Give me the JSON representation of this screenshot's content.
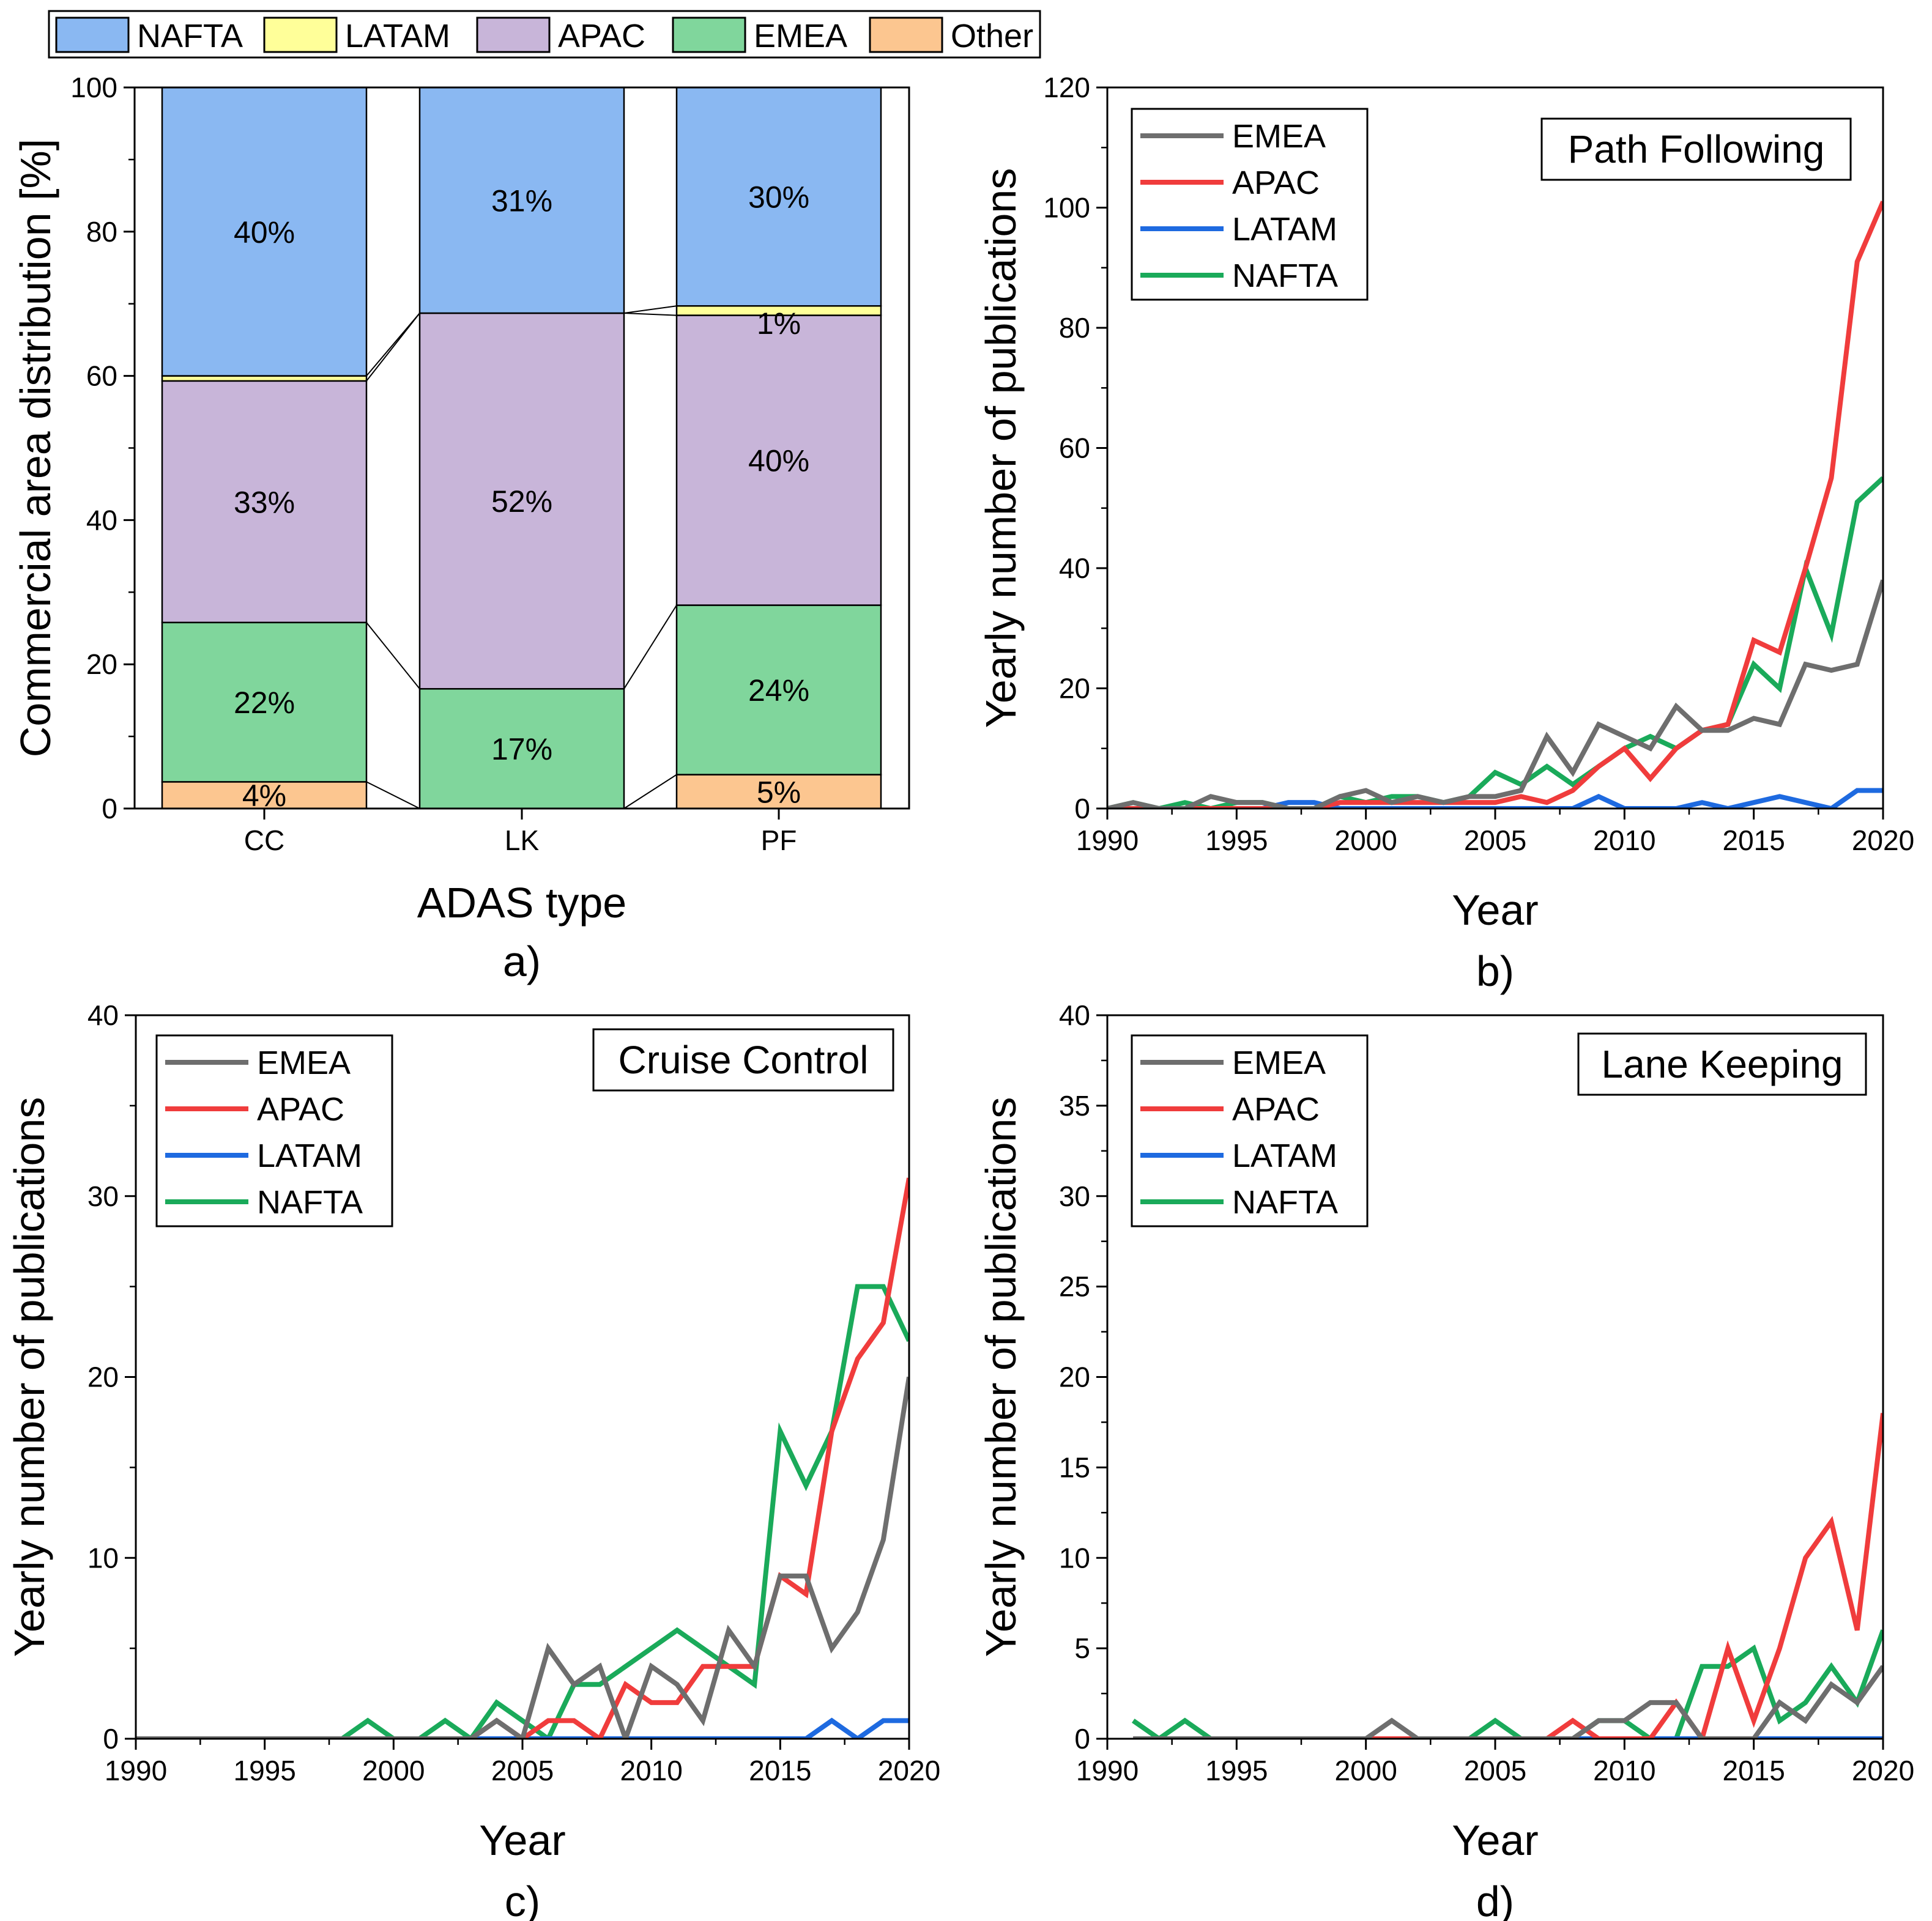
{
  "colors": {
    "NAFTA_fill": "#8ab8f2",
    "LATAM_fill": "#ffff99",
    "APAC_fill": "#c8b5d9",
    "EMEA_fill": "#80d69c",
    "Other_fill": "#fcc690",
    "EMEA_line": "#6e6e6e",
    "APAC_line": "#f03c3c",
    "LATAM_line": "#1e6ae0",
    "NAFTA_line": "#1aaa5a"
  },
  "top_legend": [
    "NAFTA",
    "LATAM",
    "APAC",
    "EMEA",
    "Other"
  ],
  "chart_data": [
    {
      "type": "bar",
      "stacked": true,
      "panel_label": "a)",
      "xlabel": "ADAS type",
      "ylabel": "Commercial area distribution [%]",
      "ylim": [
        0,
        100
      ],
      "yticks": [
        "0",
        "20",
        "40",
        "60",
        "80",
        "100"
      ],
      "categories": [
        "CC",
        "LK",
        "PF"
      ],
      "series": [
        {
          "name": "Other",
          "values": [
            3.7,
            0,
            4.7
          ],
          "labels": [
            "4%",
            "",
            "5%"
          ]
        },
        {
          "name": "EMEA",
          "values": [
            22.1,
            16.6,
            23.5
          ],
          "labels": [
            "22%",
            "17%",
            "24%"
          ]
        },
        {
          "name": "APAC",
          "values": [
            33.5,
            52.1,
            40.2
          ],
          "labels": [
            "33%",
            "52%",
            "40%"
          ]
        },
        {
          "name": "LATAM",
          "values": [
            0.7,
            0,
            1.3
          ],
          "labels": [
            "",
            "",
            "1%"
          ]
        },
        {
          "name": "NAFTA",
          "values": [
            40.0,
            31.3,
            30.3
          ],
          "labels": [
            "40%",
            "31%",
            "30%"
          ]
        }
      ]
    },
    {
      "type": "line",
      "panel_label": "b)",
      "title": "Path Following",
      "xlabel": "Year",
      "ylabel": "Yearly number of publications",
      "xlim": [
        1990,
        2020
      ],
      "ylim": [
        0,
        120
      ],
      "xticks": [
        "1990",
        "1995",
        "2000",
        "2005",
        "2010",
        "2015",
        "2020"
      ],
      "yticks": [
        "0",
        "20",
        "40",
        "60",
        "80",
        "100",
        "120"
      ],
      "x": [
        1990,
        1991,
        1992,
        1993,
        1994,
        1995,
        1996,
        1997,
        1998,
        1999,
        2000,
        2001,
        2002,
        2003,
        2004,
        2005,
        2006,
        2007,
        2008,
        2009,
        2010,
        2011,
        2012,
        2013,
        2014,
        2015,
        2016,
        2017,
        2018,
        2019,
        2020
      ],
      "series": [
        {
          "name": "EMEA",
          "values": [
            0,
            1,
            0,
            0,
            2,
            1,
            1,
            0,
            0,
            2,
            3,
            1,
            2,
            1,
            2,
            2,
            3,
            12,
            6,
            14,
            12,
            10,
            17,
            13,
            13,
            15,
            14,
            24,
            23,
            24,
            38
          ]
        },
        {
          "name": "APAC",
          "values": [
            0,
            0,
            0,
            0,
            0,
            0,
            0,
            0,
            0,
            1,
            1,
            1,
            1,
            1,
            1,
            1,
            2,
            1,
            3,
            7,
            10,
            5,
            10,
            13,
            14,
            28,
            26,
            40,
            55,
            91,
            101
          ]
        },
        {
          "name": "LATAM",
          "values": [
            0,
            0,
            0,
            0,
            0,
            0,
            0,
            1,
            1,
            0,
            0,
            0,
            0,
            0,
            0,
            0,
            0,
            0,
            0,
            2,
            0,
            0,
            0,
            1,
            0,
            1,
            2,
            1,
            0,
            3,
            3
          ]
        },
        {
          "name": "NAFTA",
          "values": [
            0,
            1,
            0,
            1,
            0,
            1,
            1,
            0,
            0,
            2,
            1,
            2,
            2,
            1,
            2,
            6,
            4,
            7,
            4,
            7,
            10,
            12,
            10,
            13,
            14,
            24,
            20,
            40,
            29,
            51,
            55
          ]
        }
      ]
    },
    {
      "type": "line",
      "panel_label": "c)",
      "title": "Cruise Control",
      "xlabel": "Year",
      "ylabel": "Yearly number of publications",
      "xlim": [
        1990,
        2020
      ],
      "ylim": [
        0,
        40
      ],
      "xticks": [
        "1990",
        "1995",
        "2000",
        "2005",
        "2010",
        "2015",
        "2020"
      ],
      "yticks": [
        "0",
        "10",
        "20",
        "30",
        "40"
      ],
      "x": [
        1990,
        1991,
        1992,
        1993,
        1994,
        1995,
        1996,
        1997,
        1998,
        1999,
        2000,
        2001,
        2002,
        2003,
        2004,
        2005,
        2006,
        2007,
        2008,
        2009,
        2010,
        2011,
        2012,
        2013,
        2014,
        2015,
        2016,
        2017,
        2018,
        2019,
        2020
      ],
      "series": [
        {
          "name": "EMEA",
          "values": [
            0,
            0,
            0,
            0,
            0,
            0,
            0,
            0,
            0,
            0,
            0,
            0,
            0,
            0,
            1,
            0,
            5,
            3,
            4,
            0,
            4,
            3,
            1,
            6,
            4,
            9,
            9,
            5,
            7,
            11,
            20
          ]
        },
        {
          "name": "APAC",
          "values": [
            0,
            0,
            0,
            0,
            0,
            0,
            0,
            0,
            0,
            0,
            0,
            0,
            0,
            0,
            1,
            0,
            1,
            1,
            0,
            3,
            2,
            2,
            4,
            4,
            4,
            9,
            8,
            17,
            21,
            23,
            31
          ]
        },
        {
          "name": "LATAM",
          "values": [
            0,
            0,
            0,
            0,
            0,
            0,
            0,
            0,
            0,
            0,
            0,
            0,
            0,
            0,
            0,
            0,
            0,
            0,
            0,
            0,
            0,
            0,
            0,
            0,
            0,
            0,
            0,
            1,
            0,
            1,
            1
          ]
        },
        {
          "name": "NAFTA",
          "values": [
            0,
            0,
            0,
            0,
            0,
            0,
            0,
            0,
            0,
            1,
            0,
            0,
            1,
            0,
            2,
            1,
            0,
            3,
            3,
            4,
            5,
            6,
            5,
            4,
            3,
            17,
            14,
            17,
            25,
            25,
            22
          ]
        }
      ]
    },
    {
      "type": "line",
      "panel_label": "d)",
      "title": "Lane Keeping",
      "xlabel": "Year",
      "ylabel": "Yearly number of publications",
      "xlim": [
        1990,
        2020
      ],
      "ylim": [
        0,
        40
      ],
      "xticks": [
        "1990",
        "1995",
        "2000",
        "2005",
        "2010",
        "2015",
        "2020"
      ],
      "yticks": [
        "0",
        "5",
        "10",
        "15",
        "20",
        "25",
        "30",
        "35",
        "40"
      ],
      "x": [
        1991,
        1992,
        1993,
        1994,
        1995,
        1996,
        1997,
        1998,
        1999,
        2000,
        2001,
        2002,
        2003,
        2004,
        2005,
        2006,
        2007,
        2008,
        2009,
        2010,
        2011,
        2012,
        2013,
        2014,
        2015,
        2016,
        2017,
        2018,
        2019,
        2020
      ],
      "series": [
        {
          "name": "EMEA",
          "values": [
            0,
            0,
            0,
            0,
            0,
            0,
            0,
            0,
            0,
            0,
            1,
            0,
            0,
            0,
            0,
            0,
            0,
            0,
            1,
            1,
            2,
            2,
            0,
            0,
            0,
            2,
            1,
            3,
            2,
            4
          ]
        },
        {
          "name": "APAC",
          "values": [
            0,
            0,
            0,
            0,
            0,
            0,
            0,
            0,
            0,
            0,
            0,
            0,
            0,
            0,
            0,
            0,
            0,
            1,
            0,
            0,
            0,
            2,
            0,
            5,
            1,
            5,
            10,
            12,
            6,
            18
          ]
        },
        {
          "name": "LATAM",
          "values": [
            0,
            0,
            0,
            0,
            0,
            0,
            0,
            0,
            0,
            0,
            0,
            0,
            0,
            0,
            0,
            0,
            0,
            0,
            0,
            0,
            0,
            0,
            0,
            0,
            0,
            0,
            0,
            0,
            0,
            0
          ]
        },
        {
          "name": "NAFTA",
          "values": [
            1,
            0,
            1,
            0,
            0,
            0,
            0,
            0,
            0,
            0,
            0,
            0,
            0,
            0,
            1,
            0,
            0,
            0,
            1,
            1,
            0,
            0,
            4,
            4,
            5,
            1,
            2,
            4,
            2,
            6
          ]
        }
      ]
    }
  ]
}
